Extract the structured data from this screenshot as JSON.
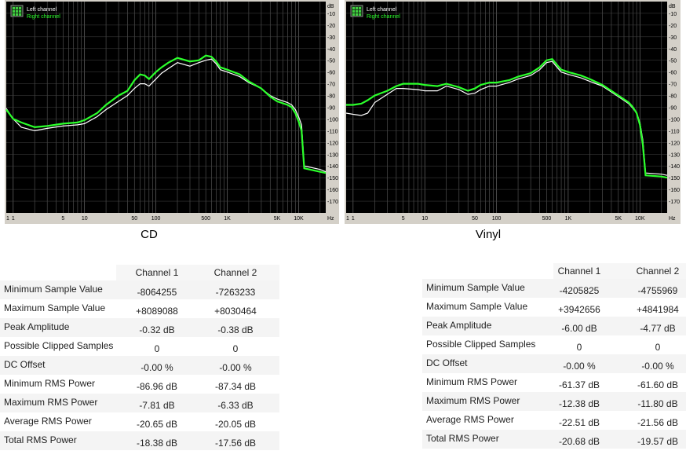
{
  "colors": {
    "plot_bg": "#000000",
    "grid": "#5a5a5a",
    "left_channel": "#ffffff",
    "right_channel": "#2bff2b",
    "frame": "#d4d0c8"
  },
  "chart_data": [
    {
      "type": "line",
      "title": "CD",
      "xscale": "log",
      "xlim": [
        0.8,
        24000
      ],
      "ylim": [
        -180,
        0
      ],
      "x_tick_labels": [
        "1",
        "1",
        "5",
        "10",
        "50",
        "100",
        "500",
        "1K",
        "5K",
        "10K",
        "Hz"
      ],
      "y_tick_labels": [
        "dB",
        "-10",
        "-20",
        "-30",
        "-40",
        "-50",
        "-60",
        "-70",
        "-80",
        "-90",
        "-100",
        "-110",
        "-120",
        "-130",
        "-140",
        "-150",
        "-160",
        "-170"
      ],
      "legend": [
        "Left channel",
        "Right channel"
      ],
      "legend_position": "top-left",
      "grid": true,
      "series": [
        {
          "name": "Left channel",
          "x": [
            0.8,
            1,
            1.3,
            2,
            3,
            5,
            8,
            10,
            15,
            20,
            30,
            40,
            50,
            60,
            70,
            80,
            100,
            120,
            150,
            200,
            300,
            400,
            500,
            600,
            700,
            800,
            1000,
            1500,
            2000,
            3000,
            4000,
            5000,
            7000,
            8000,
            9000,
            10000,
            11000,
            12000,
            20000,
            24000
          ],
          "y": [
            -91,
            -100,
            -107,
            -110,
            -108,
            -106,
            -105,
            -104,
            -98,
            -92,
            -85,
            -80,
            -74,
            -70,
            -70,
            -72,
            -66,
            -61,
            -57,
            -52,
            -55,
            -52,
            -50,
            -49,
            -53,
            -58,
            -60,
            -64,
            -69,
            -74,
            -80,
            -83,
            -86,
            -88,
            -92,
            -98,
            -105,
            -140,
            -143,
            -145
          ]
        },
        {
          "name": "Right channel",
          "x": [
            0.8,
            1,
            1.3,
            2,
            3,
            5,
            8,
            10,
            15,
            20,
            30,
            40,
            50,
            60,
            70,
            80,
            100,
            120,
            150,
            200,
            300,
            400,
            500,
            600,
            700,
            800,
            1000,
            1500,
            2000,
            3000,
            4000,
            5000,
            7000,
            8000,
            9000,
            10000,
            11000,
            12000,
            20000,
            24000
          ],
          "y": [
            -92,
            -100,
            -103,
            -107,
            -106,
            -104,
            -103,
            -101,
            -95,
            -88,
            -80,
            -76,
            -67,
            -62,
            -63,
            -66,
            -60,
            -56,
            -52,
            -48,
            -51,
            -50,
            -46,
            -47,
            -51,
            -56,
            -58,
            -62,
            -68,
            -74,
            -81,
            -85,
            -88,
            -90,
            -95,
            -102,
            -110,
            -142,
            -145,
            -146
          ]
        }
      ]
    },
    {
      "type": "line",
      "title": "Vinyl",
      "xscale": "log",
      "xlim": [
        0.8,
        24000
      ],
      "ylim": [
        -180,
        0
      ],
      "x_tick_labels": [
        "1",
        "1",
        "5",
        "10",
        "50",
        "100",
        "500",
        "1K",
        "5K",
        "10K",
        "Hz"
      ],
      "y_tick_labels": [
        "dB",
        "-10",
        "-20",
        "-30",
        "-40",
        "-50",
        "-60",
        "-70",
        "-80",
        "-90",
        "-100",
        "-110",
        "-120",
        "-130",
        "-140",
        "-150",
        "-160",
        "-170"
      ],
      "legend": [
        "Left channel",
        "Right channel"
      ],
      "legend_position": "top-left",
      "grid": true,
      "series": [
        {
          "name": "Left channel",
          "x": [
            0.8,
            1,
            1.3,
            1.6,
            2,
            3,
            4,
            5,
            8,
            10,
            15,
            20,
            30,
            40,
            50,
            60,
            80,
            100,
            150,
            200,
            300,
            400,
            500,
            600,
            700,
            800,
            1000,
            1500,
            2000,
            3000,
            5000,
            7000,
            8000,
            9000,
            10000,
            11000,
            12000,
            20000,
            24000
          ],
          "y": [
            -95,
            -96,
            -97,
            -95,
            -86,
            -79,
            -74,
            -74,
            -75,
            -76,
            -76,
            -72,
            -75,
            -79,
            -78,
            -75,
            -72,
            -72,
            -69,
            -66,
            -63,
            -58,
            -52,
            -51,
            -56,
            -60,
            -62,
            -65,
            -68,
            -72,
            -81,
            -87,
            -91,
            -95,
            -103,
            -118,
            -146,
            -147,
            -148
          ]
        },
        {
          "name": "Right channel",
          "x": [
            0.8,
            1,
            1.3,
            1.6,
            2,
            3,
            4,
            5,
            8,
            10,
            15,
            20,
            30,
            40,
            50,
            60,
            80,
            100,
            150,
            200,
            300,
            400,
            500,
            600,
            700,
            800,
            1000,
            1500,
            2000,
            3000,
            5000,
            7000,
            8000,
            9000,
            10000,
            11000,
            12000,
            20000,
            24000
          ],
          "y": [
            -88,
            -88,
            -87,
            -84,
            -80,
            -76,
            -72,
            -70,
            -70,
            -71,
            -72,
            -70,
            -73,
            -76,
            -74,
            -71,
            -69,
            -69,
            -67,
            -64,
            -61,
            -56,
            -50,
            -49,
            -54,
            -58,
            -60,
            -63,
            -66,
            -71,
            -80,
            -86,
            -90,
            -95,
            -105,
            -122,
            -148,
            -149,
            -150
          ]
        }
      ]
    }
  ],
  "captions": {
    "left": "CD",
    "right": "Vinyl"
  },
  "tables": [
    {
      "headers": [
        "Channel 1",
        "Channel 2"
      ],
      "rows": [
        {
          "label": "Minimum Sample Value",
          "c1": "-8064255",
          "c2": "-7263233"
        },
        {
          "label": "Maximum Sample Value",
          "c1": "+8089088",
          "c2": "+8030464"
        },
        {
          "label": "Peak Amplitude",
          "c1": "-0.32 dB",
          "c2": "-0.38 dB"
        },
        {
          "label": "Possible Clipped Samples",
          "c1": "0",
          "c2": "0"
        },
        {
          "label": "DC Offset",
          "c1": "-0.00 %",
          "c2": "-0.00 %"
        },
        {
          "label": "Minimum RMS Power",
          "c1": "-86.96 dB",
          "c2": "-87.34 dB"
        },
        {
          "label": "Maximum RMS Power",
          "c1": "-7.81 dB",
          "c2": "-6.33 dB"
        },
        {
          "label": "Average RMS Power",
          "c1": "-20.65 dB",
          "c2": "-20.05 dB"
        },
        {
          "label": "Total RMS Power",
          "c1": "-18.38 dB",
          "c2": "-17.56 dB"
        }
      ]
    },
    {
      "headers": [
        "Channel 1",
        "Channel 2"
      ],
      "rows": [
        {
          "label": "Minimum Sample Value",
          "c1": "-4205825",
          "c2": "-4755969"
        },
        {
          "label": "Maximum Sample Value",
          "c1": "+3942656",
          "c2": "+4841984"
        },
        {
          "label": "Peak Amplitude",
          "c1": "-6.00 dB",
          "c2": "-4.77 dB"
        },
        {
          "label": "Possible Clipped Samples",
          "c1": "0",
          "c2": "0"
        },
        {
          "label": "DC Offset",
          "c1": "-0.00 %",
          "c2": "-0.00 %"
        },
        {
          "label": "Minimum RMS Power",
          "c1": "-61.37 dB",
          "c2": "-61.60 dB"
        },
        {
          "label": "Maximum RMS Power",
          "c1": "-12.38 dB",
          "c2": "-11.80 dB"
        },
        {
          "label": "Average RMS Power",
          "c1": "-22.51 dB",
          "c2": "-21.56 dB"
        },
        {
          "label": "Total RMS Power",
          "c1": "-20.68 dB",
          "c2": "-19.57 dB"
        }
      ]
    }
  ]
}
